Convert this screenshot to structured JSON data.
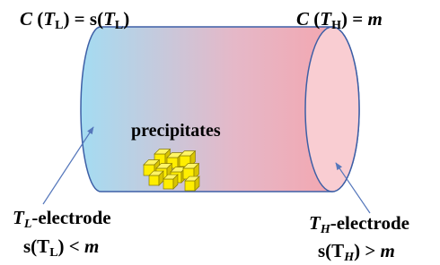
{
  "labels": {
    "top_left": [
      "C",
      " (",
      "T",
      "L",
      ") = s(",
      "T",
      "L",
      ")"
    ],
    "top_right": [
      "C",
      " (",
      "T",
      "H",
      ") = ",
      "m"
    ],
    "center": "precipitates",
    "left_electrode": [
      "T",
      "L",
      "-electrode"
    ],
    "left_condition": [
      "s(T",
      "L",
      ") < ",
      "m"
    ],
    "right_electrode": [
      "T",
      "H",
      "-electrode"
    ],
    "right_condition": [
      "s(T",
      "H",
      ") > ",
      "m"
    ]
  }
}
